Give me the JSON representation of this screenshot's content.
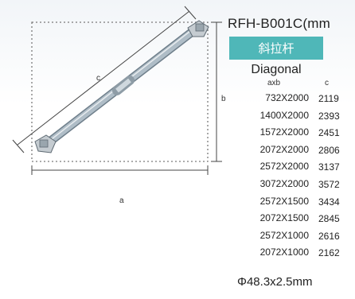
{
  "model": "RFH-B001C(mm",
  "name_cn": "斜拉杆",
  "name_en": "Diagonal",
  "dimension_labels": {
    "a": "a",
    "b": "b",
    "c": "c"
  },
  "table": {
    "headers": [
      "axb",
      "c"
    ],
    "rows": [
      [
        "732X2000",
        "2119"
      ],
      [
        "1400X2000",
        "2393"
      ],
      [
        "1572X2000",
        "2451"
      ],
      [
        "2072X2000",
        "2806"
      ],
      [
        "2572X2000",
        "3137"
      ],
      [
        "3072X2000",
        "3572"
      ],
      [
        "2572X1500",
        "3434"
      ],
      [
        "2072X1500",
        "2845"
      ],
      [
        "2572X1000",
        "2616"
      ],
      [
        "2072X1000",
        "2162"
      ]
    ]
  },
  "pipe_spec": "Φ48.3x2.5mm",
  "colors": {
    "banner": "#4fb7b8",
    "tube": "#b9c6cf",
    "frame_dots": "#7a7a7a"
  }
}
